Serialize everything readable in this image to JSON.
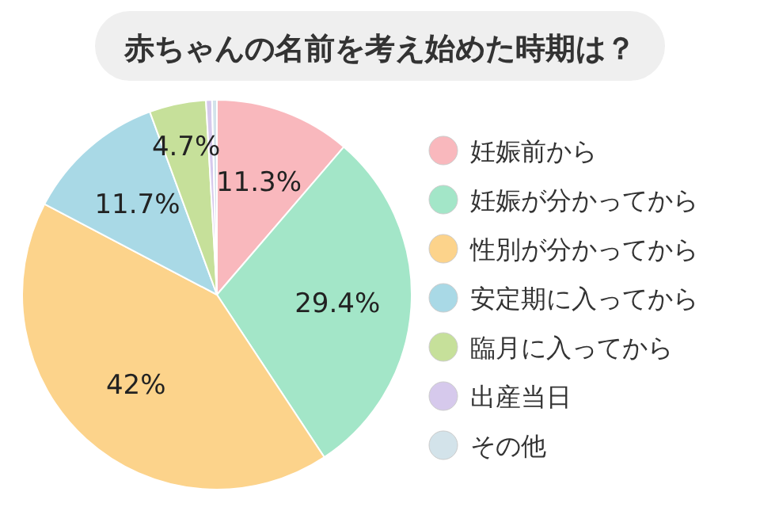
{
  "chart_data": {
    "type": "pie",
    "title": "赤ちゃんの名前を考え始めた時期は？",
    "categories": [
      "妊娠前から",
      "妊娠が分かってから",
      "性別が分かってから",
      "安定期に入ってから",
      "臨月に入ってから",
      "出産当日",
      "その他"
    ],
    "values": [
      11.3,
      29.4,
      42,
      11.7,
      4.7,
      0.5,
      0.4
    ],
    "value_labels": [
      "11.3%",
      "29.4%",
      "42%",
      "11.7%",
      "4.7%",
      null,
      null
    ],
    "colors": [
      "#f9b8bd",
      "#a3e6c8",
      "#fcd38b",
      "#a9d9e6",
      "#c6e09a",
      "#d6c9ec",
      "#d3e3ea"
    ],
    "legend": "right"
  }
}
